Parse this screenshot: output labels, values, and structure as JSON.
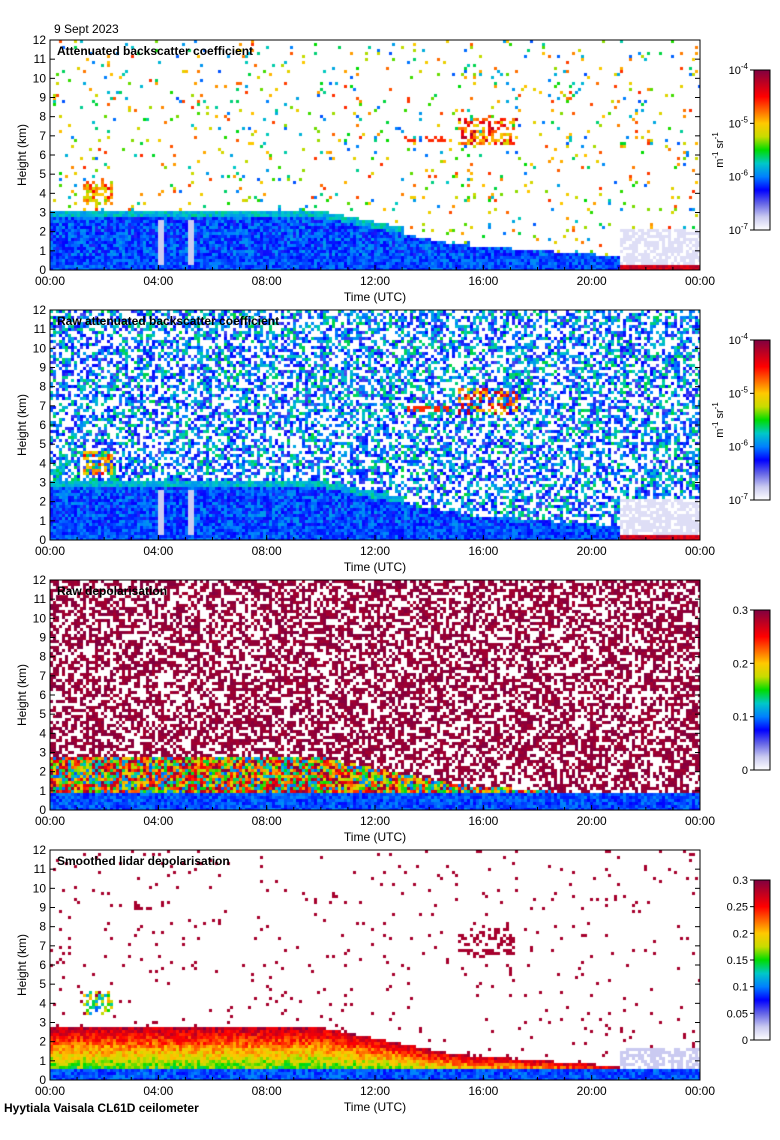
{
  "date_label": "9 Sept 2023",
  "footer": "Hyytiala Vaisala CL61D ceilometer",
  "colors": {
    "background": "#ffffff",
    "low_signal": "#e0e0e0",
    "colormap": [
      "#ffffff",
      "#c8c8f0",
      "#6464e6",
      "#0000ff",
      "#0080ff",
      "#00c8c8",
      "#00dc00",
      "#c8dc00",
      "#ffc800",
      "#ff6400",
      "#ff0000",
      "#c00020",
      "#800040"
    ]
  },
  "chart_data": [
    {
      "type": "heatmap",
      "title": "Attenuated backscatter coefficient",
      "xlabel": "Time (UTC)",
      "ylabel": "Height (km)",
      "x_ticks": [
        "00:00",
        "04:00",
        "08:00",
        "12:00",
        "16:00",
        "20:00",
        "00:00"
      ],
      "y_ticks": [
        "0",
        "1",
        "2",
        "3",
        "4",
        "5",
        "6",
        "7",
        "8",
        "9",
        "10",
        "11",
        "12"
      ],
      "ylim": [
        0,
        12
      ],
      "xlim_hours": [
        0,
        24
      ],
      "grid": false,
      "legend": "right",
      "colorbar": {
        "scale": "log",
        "range": [
          1e-07,
          0.0001
        ],
        "ticks": [
          {
            "base": "10",
            "exp": "-7"
          },
          {
            "base": "10",
            "exp": "-6"
          },
          {
            "base": "10",
            "exp": "-5"
          },
          {
            "base": "10",
            "exp": "-4"
          }
        ],
        "unit": {
          "a": "m",
          "a_exp": "-1",
          "b": "sr",
          "b_exp": "-1"
        }
      },
      "style": "clean"
    },
    {
      "type": "heatmap",
      "title": "Raw attenuated backscatter coefficient",
      "xlabel": "Time (UTC)",
      "ylabel": "Height (km)",
      "x_ticks": [
        "00:00",
        "04:00",
        "08:00",
        "12:00",
        "16:00",
        "20:00",
        "00:00"
      ],
      "y_ticks": [
        "0",
        "1",
        "2",
        "3",
        "4",
        "5",
        "6",
        "7",
        "8",
        "9",
        "10",
        "11",
        "12"
      ],
      "ylim": [
        0,
        12
      ],
      "xlim_hours": [
        0,
        24
      ],
      "grid": false,
      "legend": "right",
      "colorbar": {
        "scale": "log",
        "range": [
          1e-07,
          0.0001
        ],
        "ticks": [
          {
            "base": "10",
            "exp": "-7"
          },
          {
            "base": "10",
            "exp": "-6"
          },
          {
            "base": "10",
            "exp": "-5"
          },
          {
            "base": "10",
            "exp": "-4"
          }
        ],
        "unit": {
          "a": "m",
          "a_exp": "-1",
          "b": "sr",
          "b_exp": "-1"
        }
      },
      "style": "noisy"
    },
    {
      "type": "heatmap",
      "title": "Raw depolarisation",
      "xlabel": "Time (UTC)",
      "ylabel": "Height (km)",
      "x_ticks": [
        "00:00",
        "04:00",
        "08:00",
        "12:00",
        "16:00",
        "20:00",
        "00:00"
      ],
      "y_ticks": [
        "0",
        "1",
        "2",
        "3",
        "4",
        "5",
        "6",
        "7",
        "8",
        "9",
        "10",
        "11",
        "12"
      ],
      "ylim": [
        0,
        12
      ],
      "xlim_hours": [
        0,
        24
      ],
      "grid": false,
      "legend": "right",
      "colorbar": {
        "scale": "linear",
        "range": [
          0,
          0.3
        ],
        "ticks": [
          {
            "base": "0"
          },
          {
            "base": "0.1"
          },
          {
            "base": "0.2"
          },
          {
            "base": "0.3"
          }
        ]
      },
      "style": "depol_raw"
    },
    {
      "type": "heatmap",
      "title": "Smoothed lidar depolarisation",
      "xlabel": "Time (UTC)",
      "ylabel": "Height (km)",
      "x_ticks": [
        "00:00",
        "04:00",
        "08:00",
        "12:00",
        "16:00",
        "20:00",
        "00:00"
      ],
      "y_ticks": [
        "0",
        "1",
        "2",
        "3",
        "4",
        "5",
        "6",
        "7",
        "8",
        "9",
        "10",
        "11",
        "12"
      ],
      "ylim": [
        0,
        12
      ],
      "xlim_hours": [
        0,
        24
      ],
      "grid": false,
      "legend": "right",
      "colorbar": {
        "scale": "linear",
        "range": [
          0,
          0.3
        ],
        "ticks": [
          {
            "base": "0"
          },
          {
            "base": "0.05"
          },
          {
            "base": "0.1"
          },
          {
            "base": "0.15"
          },
          {
            "base": "0.2"
          },
          {
            "base": "0.25"
          },
          {
            "base": "0.3"
          }
        ]
      },
      "style": "depol_smooth"
    }
  ]
}
